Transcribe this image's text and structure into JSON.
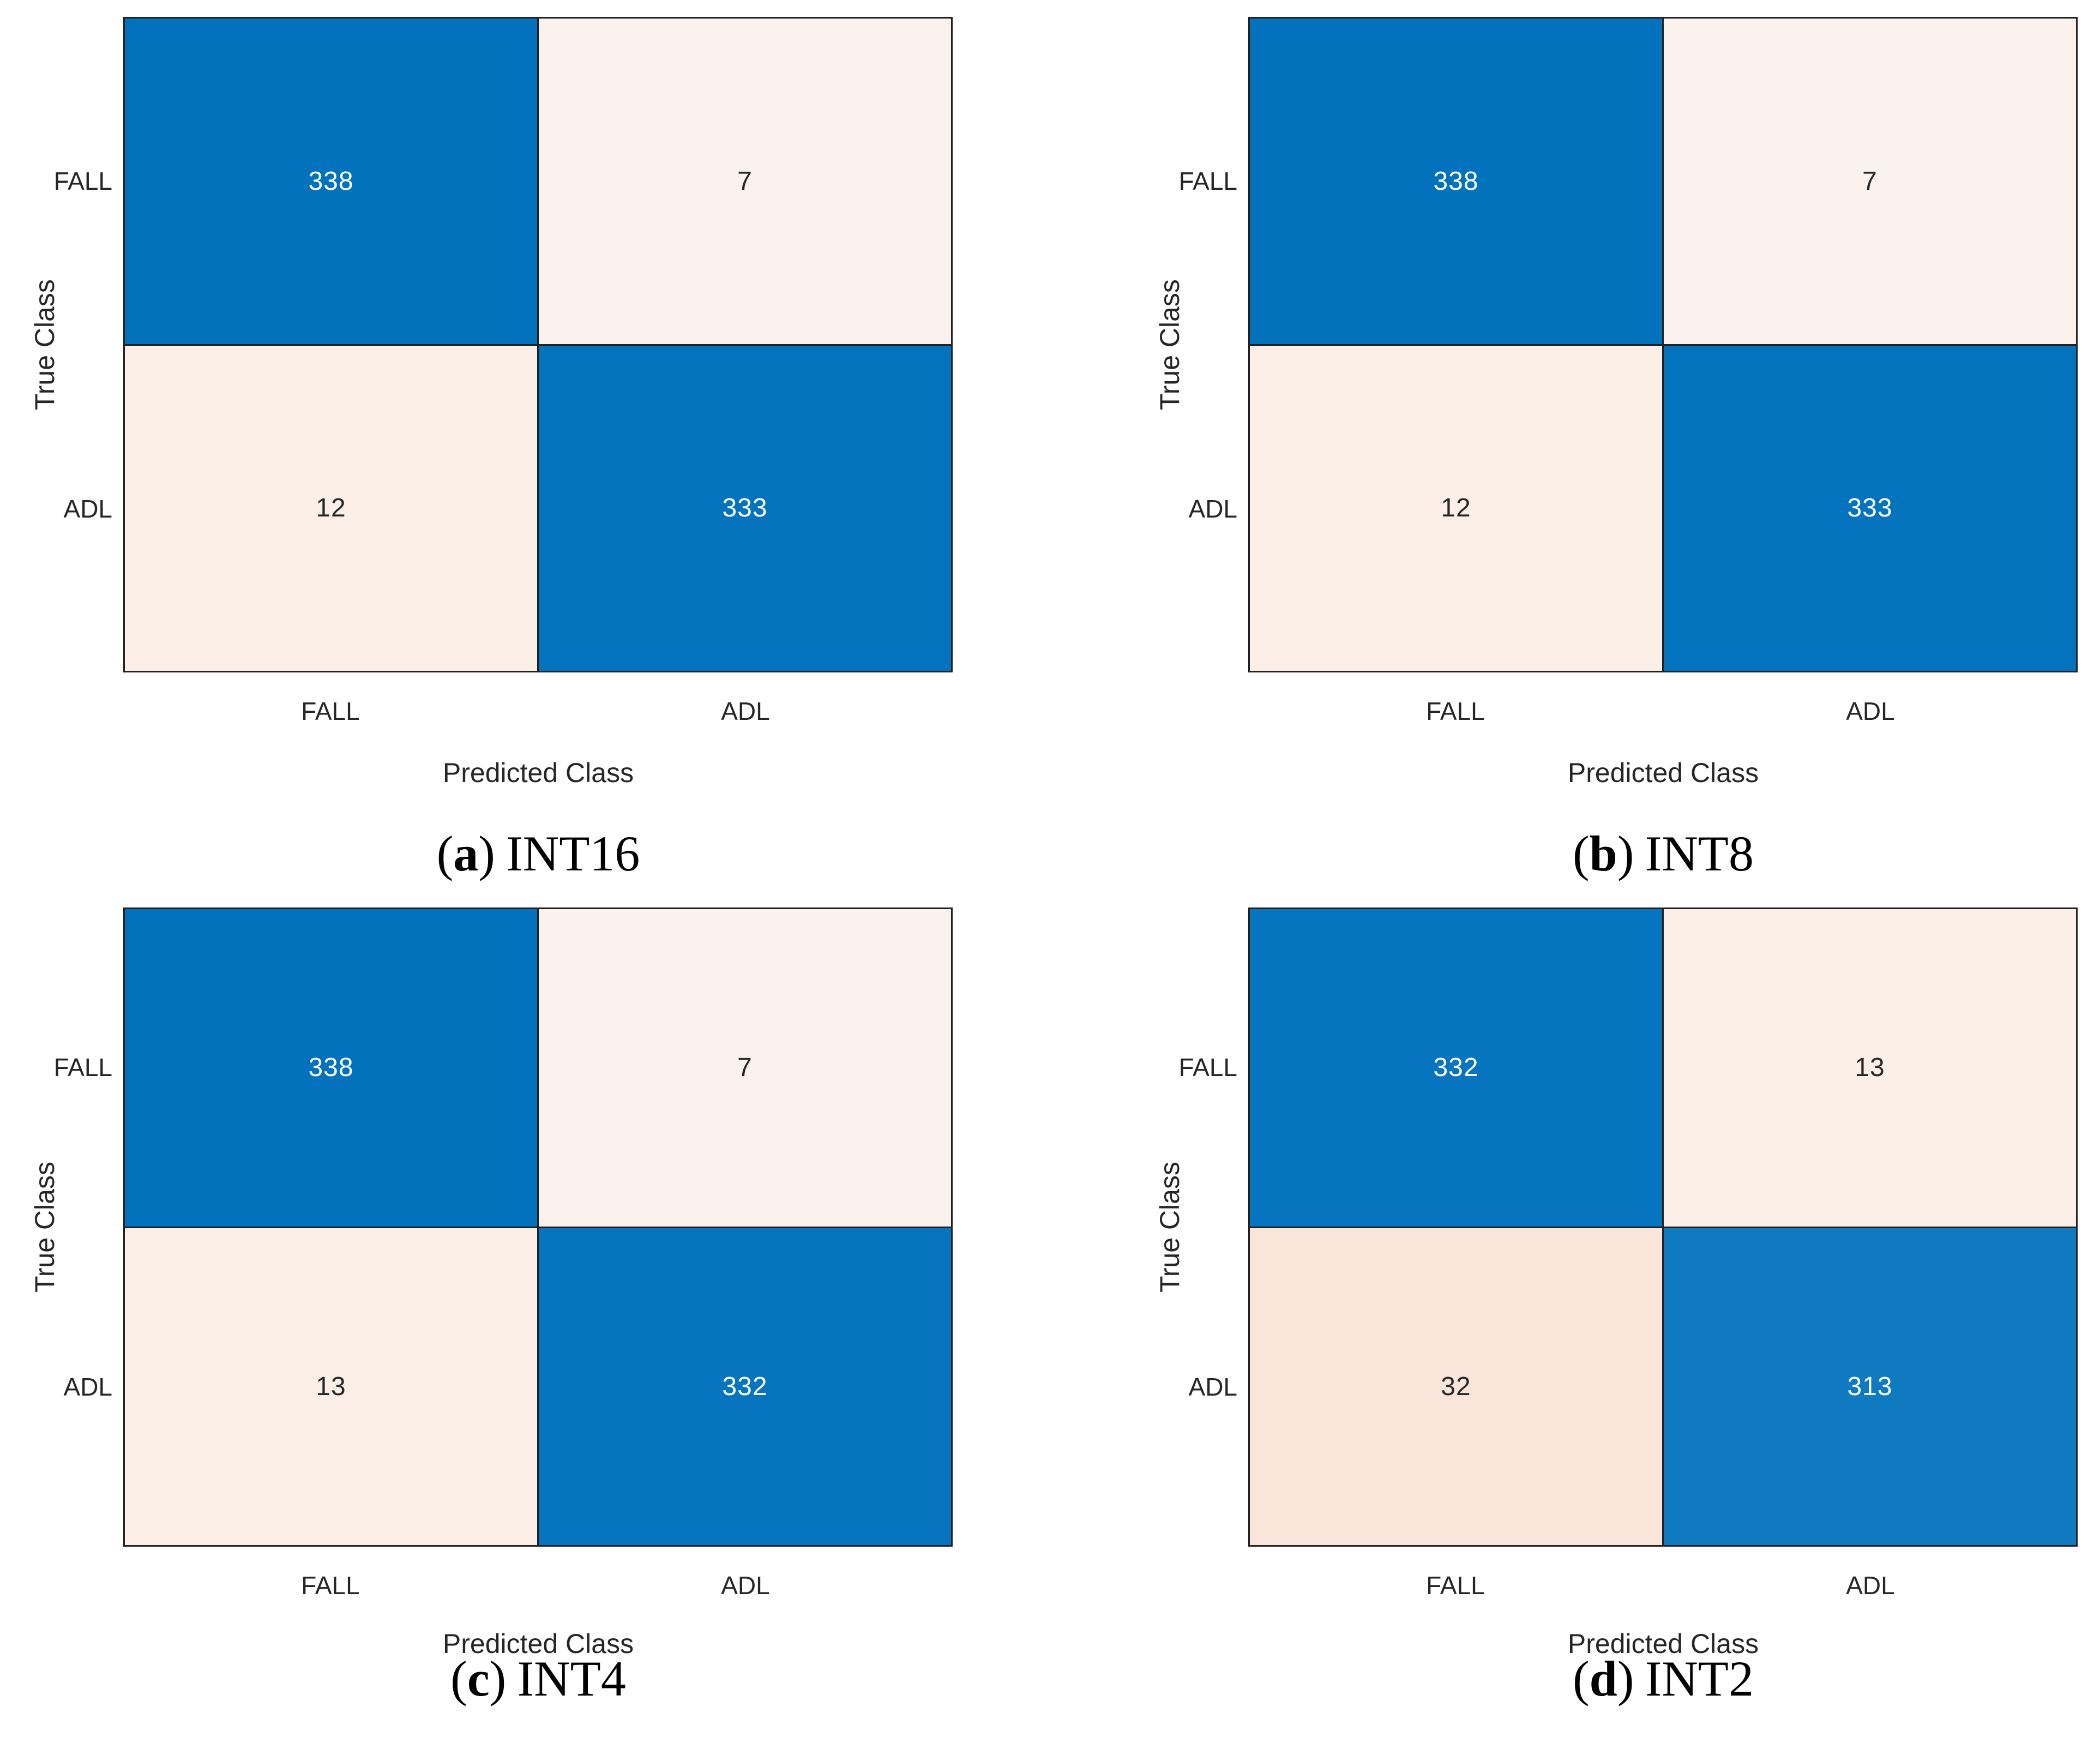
{
  "figure": {
    "background": "#ffffff",
    "border_color": "#212121",
    "punctuation": {
      "open": "(",
      "close": ")"
    },
    "panels": [
      {
        "caption": {
          "letter": "a",
          "title": "INT16"
        },
        "xlabel": "Predicted Class",
        "ylabel": "True Class",
        "x_ticks": [
          "FALL",
          "ADL"
        ],
        "y_ticks": [
          "FALL",
          "ADL"
        ],
        "cells": [
          {
            "value": 338,
            "bg": "#0272BD",
            "fg": "#ffffff"
          },
          {
            "value": 7,
            "bg": "#FBF2ED",
            "fg": "#262626"
          },
          {
            "value": 12,
            "bg": "#FBEFE8",
            "fg": "#262626"
          },
          {
            "value": 333,
            "bg": "#0473BD",
            "fg": "#ffffff"
          }
        ]
      },
      {
        "caption": {
          "letter": "b",
          "title": "INT8"
        },
        "xlabel": "Predicted Class",
        "ylabel": "True Class",
        "x_ticks": [
          "FALL",
          "ADL"
        ],
        "y_ticks": [
          "FALL",
          "ADL"
        ],
        "cells": [
          {
            "value": 338,
            "bg": "#0272BD",
            "fg": "#ffffff"
          },
          {
            "value": 7,
            "bg": "#FBF2ED",
            "fg": "#262626"
          },
          {
            "value": 12,
            "bg": "#FBEFE8",
            "fg": "#262626"
          },
          {
            "value": 333,
            "bg": "#0473BD",
            "fg": "#ffffff"
          }
        ]
      },
      {
        "caption": {
          "letter": "c",
          "title": "INT4"
        },
        "xlabel": "Predicted Class",
        "ylabel": "True Class",
        "x_ticks": [
          "FALL",
          "ADL"
        ],
        "y_ticks": [
          "FALL",
          "ADL"
        ],
        "cells": [
          {
            "value": 338,
            "bg": "#0272BD",
            "fg": "#ffffff"
          },
          {
            "value": 7,
            "bg": "#FBF2ED",
            "fg": "#262626"
          },
          {
            "value": 13,
            "bg": "#FBEFE7",
            "fg": "#262626"
          },
          {
            "value": 332,
            "bg": "#0674BE",
            "fg": "#ffffff"
          }
        ]
      },
      {
        "caption": {
          "letter": "d",
          "title": "INT2"
        },
        "xlabel": "Predicted Class",
        "ylabel": "True Class",
        "x_ticks": [
          "FALL",
          "ADL"
        ],
        "y_ticks": [
          "FALL",
          "ADL"
        ],
        "cells": [
          {
            "value": 332,
            "bg": "#0674BE",
            "fg": "#ffffff"
          },
          {
            "value": 13,
            "bg": "#FBEFE7",
            "fg": "#262626"
          },
          {
            "value": 32,
            "bg": "#FAE5DB",
            "fg": "#262626"
          },
          {
            "value": 313,
            "bg": "#107AC1",
            "fg": "#ffffff"
          }
        ]
      }
    ]
  },
  "chart_data": [
    {
      "type": "heatmap",
      "title": "(a) INT16",
      "xlabel": "Predicted Class",
      "ylabel": "True Class",
      "x_categories": [
        "FALL",
        "ADL"
      ],
      "y_categories": [
        "FALL",
        "ADL"
      ],
      "values": [
        [
          338,
          7
        ],
        [
          12,
          333
        ]
      ],
      "legend_position": "none",
      "grid": false
    },
    {
      "type": "heatmap",
      "title": "(b) INT8",
      "xlabel": "Predicted Class",
      "ylabel": "True Class",
      "x_categories": [
        "FALL",
        "ADL"
      ],
      "y_categories": [
        "FALL",
        "ADL"
      ],
      "values": [
        [
          338,
          7
        ],
        [
          12,
          333
        ]
      ],
      "legend_position": "none",
      "grid": false
    },
    {
      "type": "heatmap",
      "title": "(c) INT4",
      "xlabel": "Predicted Class",
      "ylabel": "True Class",
      "x_categories": [
        "FALL",
        "ADL"
      ],
      "y_categories": [
        "FALL",
        "ADL"
      ],
      "values": [
        [
          338,
          7
        ],
        [
          13,
          332
        ]
      ],
      "legend_position": "none",
      "grid": false
    },
    {
      "type": "heatmap",
      "title": "(d) INT2",
      "xlabel": "Predicted Class",
      "ylabel": "True Class",
      "x_categories": [
        "FALL",
        "ADL"
      ],
      "y_categories": [
        "FALL",
        "ADL"
      ],
      "values": [
        [
          332,
          13
        ],
        [
          32,
          313
        ]
      ],
      "legend_position": "none",
      "grid": false
    }
  ]
}
